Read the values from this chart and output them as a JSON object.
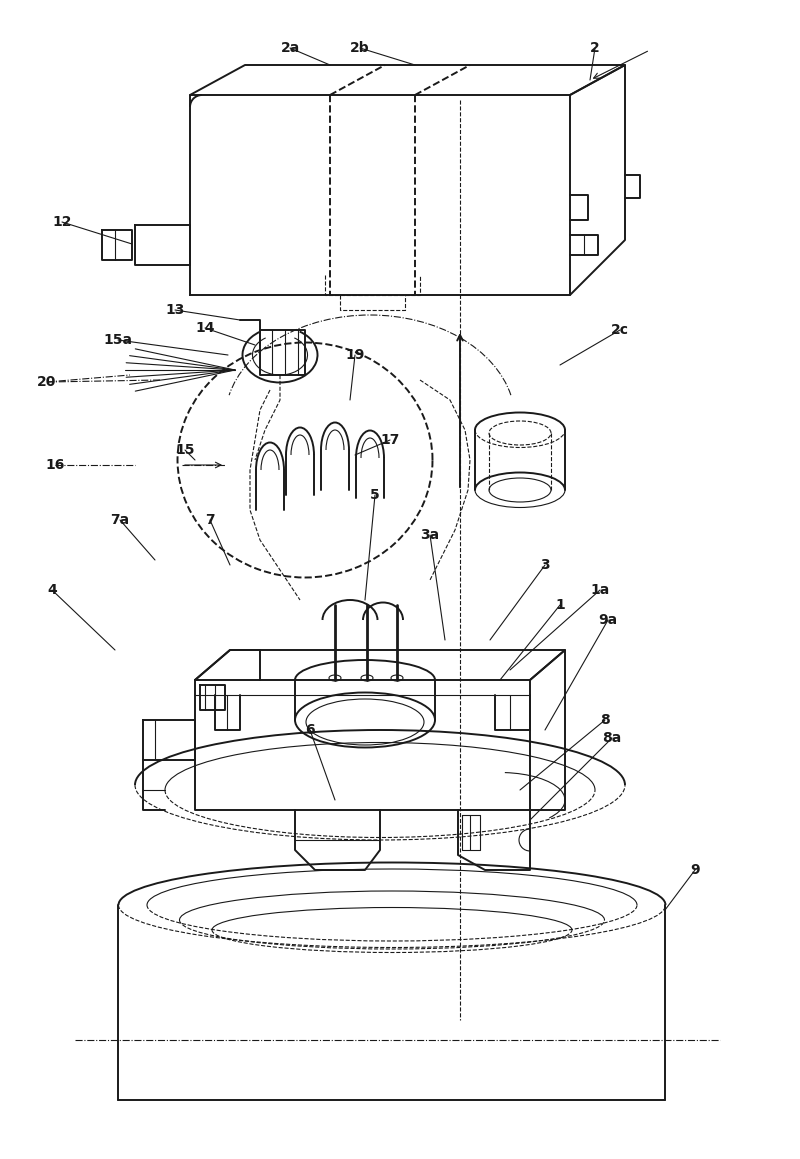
{
  "background_color": "#ffffff",
  "line_color": "#1a1a1a",
  "labels": [
    [
      "2",
      [
        595,
        48
      ]
    ],
    [
      "2a",
      [
        290,
        48
      ]
    ],
    [
      "2b",
      [
        360,
        48
      ]
    ],
    [
      "2c",
      [
        620,
        330
      ]
    ],
    [
      "12",
      [
        62,
        222
      ]
    ],
    [
      "13",
      [
        175,
        310
      ]
    ],
    [
      "14",
      [
        205,
        328
      ]
    ],
    [
      "15a",
      [
        118,
        340
      ]
    ],
    [
      "15",
      [
        185,
        450
      ]
    ],
    [
      "16",
      [
        55,
        465
      ]
    ],
    [
      "17",
      [
        390,
        440
      ]
    ],
    [
      "19",
      [
        355,
        355
      ]
    ],
    [
      "20",
      [
        47,
        382
      ]
    ],
    [
      "7",
      [
        210,
        520
      ]
    ],
    [
      "7a",
      [
        120,
        520
      ]
    ],
    [
      "4",
      [
        52,
        590
      ]
    ],
    [
      "5",
      [
        375,
        495
      ]
    ],
    [
      "6",
      [
        310,
        730
      ]
    ],
    [
      "3a",
      [
        430,
        535
      ]
    ],
    [
      "3",
      [
        545,
        565
      ]
    ],
    [
      "1",
      [
        560,
        605
      ]
    ],
    [
      "1a",
      [
        600,
        590
      ]
    ],
    [
      "9a",
      [
        608,
        620
      ]
    ],
    [
      "8",
      [
        605,
        720
      ]
    ],
    [
      "8a",
      [
        612,
        738
      ]
    ],
    [
      "9",
      [
        695,
        870
      ]
    ]
  ],
  "lw_main": 1.4,
  "lw_thin": 0.8,
  "lw_thick": 2.0,
  "font_size": 10
}
